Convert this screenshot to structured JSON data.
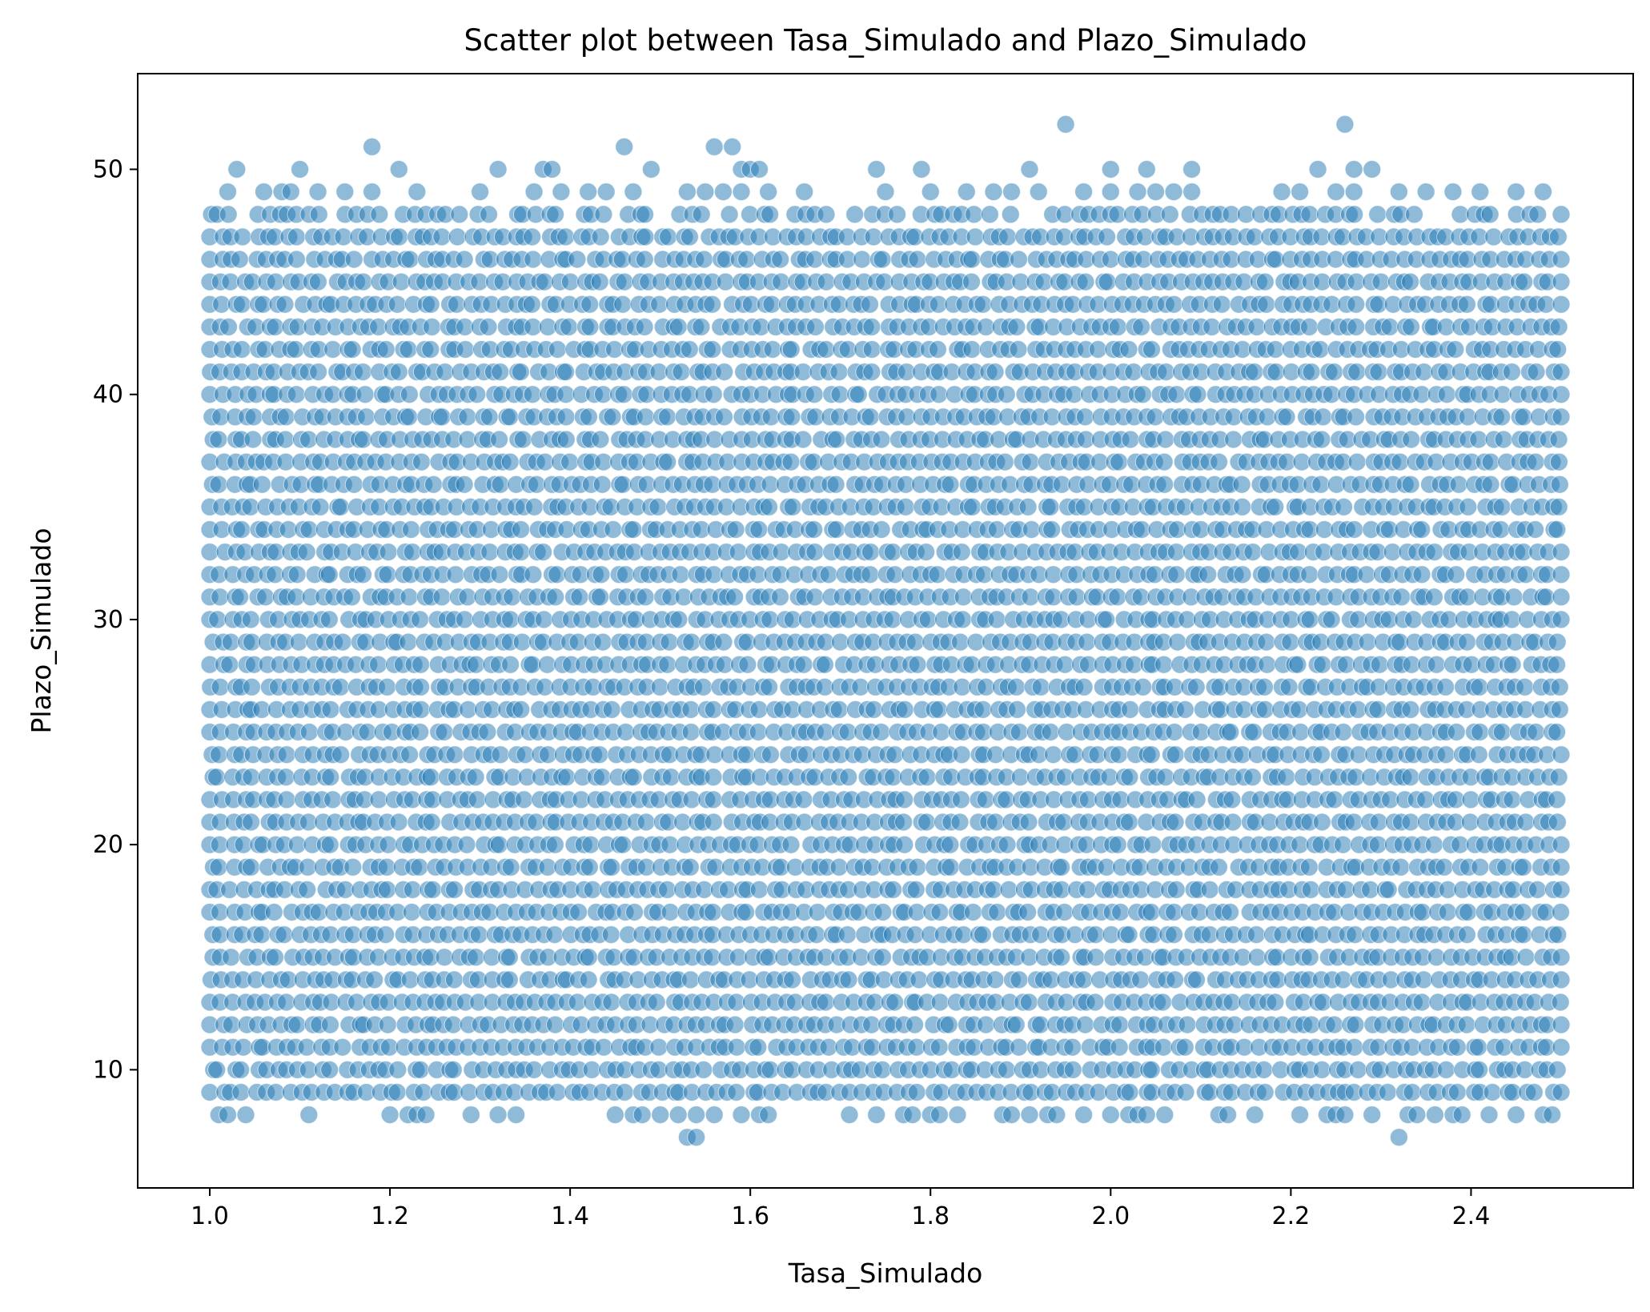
{
  "chart_data": {
    "type": "scatter",
    "title": "Scatter plot between Tasa_Simulado and Plazo_Simulado",
    "xlabel": "Tasa_Simulado",
    "ylabel": "Plazo_Simulado",
    "xlim": [
      0.92,
      2.58
    ],
    "ylim": [
      4.75,
      54.25
    ],
    "xticks": [
      "1.0",
      "1.2",
      "1.4",
      "1.6",
      "1.8",
      "2.0",
      "2.2",
      "2.4"
    ],
    "yticks": [
      "10",
      "20",
      "30",
      "40",
      "50"
    ],
    "grid": false,
    "legend": "none",
    "marker_color": "#1f77b4",
    "marker_alpha": 0.5,
    "dense_band": {
      "x_range": [
        1.0,
        2.5
      ],
      "y_range": [
        9,
        48
      ],
      "y_step": 1,
      "x_step": 0.0125
    },
    "series": [
      {
        "values": [
          [
            1.03,
            50
          ],
          [
            1.1,
            50
          ],
          [
            1.18,
            51
          ],
          [
            1.21,
            50
          ],
          [
            1.32,
            50
          ],
          [
            1.37,
            50
          ],
          [
            1.38,
            50
          ],
          [
            1.46,
            51
          ],
          [
            1.49,
            50
          ],
          [
            1.56,
            51
          ],
          [
            1.58,
            51
          ],
          [
            1.59,
            50
          ],
          [
            1.6,
            50
          ],
          [
            1.61,
            50
          ],
          [
            1.74,
            50
          ],
          [
            1.79,
            50
          ],
          [
            1.91,
            50
          ],
          [
            1.95,
            52
          ],
          [
            2.0,
            50
          ],
          [
            2.04,
            50
          ],
          [
            2.09,
            50
          ],
          [
            2.23,
            50
          ],
          [
            2.26,
            52
          ],
          [
            2.27,
            50
          ],
          [
            2.29,
            50
          ],
          [
            1.02,
            49
          ],
          [
            1.06,
            49
          ],
          [
            1.08,
            49
          ],
          [
            1.09,
            49
          ],
          [
            1.12,
            49
          ],
          [
            1.15,
            49
          ],
          [
            1.18,
            49
          ],
          [
            1.23,
            49
          ],
          [
            1.3,
            49
          ],
          [
            1.36,
            49
          ],
          [
            1.39,
            49
          ],
          [
            1.42,
            49
          ],
          [
            1.44,
            49
          ],
          [
            1.47,
            49
          ],
          [
            1.53,
            49
          ],
          [
            1.55,
            49
          ],
          [
            1.57,
            49
          ],
          [
            1.59,
            49
          ],
          [
            1.62,
            49
          ],
          [
            1.66,
            49
          ],
          [
            1.75,
            49
          ],
          [
            1.8,
            49
          ],
          [
            1.84,
            49
          ],
          [
            1.87,
            49
          ],
          [
            1.89,
            49
          ],
          [
            1.92,
            49
          ],
          [
            1.97,
            49
          ],
          [
            2.0,
            49
          ],
          [
            2.03,
            49
          ],
          [
            2.05,
            49
          ],
          [
            2.07,
            49
          ],
          [
            2.09,
            49
          ],
          [
            2.19,
            49
          ],
          [
            2.21,
            49
          ],
          [
            2.25,
            49
          ],
          [
            2.27,
            49
          ],
          [
            2.32,
            49
          ],
          [
            2.35,
            49
          ],
          [
            2.38,
            49
          ],
          [
            2.41,
            49
          ],
          [
            2.45,
            49
          ],
          [
            2.48,
            49
          ],
          [
            1.01,
            8
          ],
          [
            1.02,
            8
          ],
          [
            1.04,
            8
          ],
          [
            1.11,
            8
          ],
          [
            1.2,
            8
          ],
          [
            1.22,
            8
          ],
          [
            1.23,
            8
          ],
          [
            1.24,
            8
          ],
          [
            1.29,
            8
          ],
          [
            1.32,
            8
          ],
          [
            1.34,
            8
          ],
          [
            1.45,
            8
          ],
          [
            1.47,
            8
          ],
          [
            1.48,
            8
          ],
          [
            1.5,
            8
          ],
          [
            1.52,
            8
          ],
          [
            1.54,
            8
          ],
          [
            1.56,
            8
          ],
          [
            1.59,
            8
          ],
          [
            1.61,
            8
          ],
          [
            1.62,
            8
          ],
          [
            1.71,
            8
          ],
          [
            1.74,
            8
          ],
          [
            1.77,
            8
          ],
          [
            1.78,
            8
          ],
          [
            1.8,
            8
          ],
          [
            1.81,
            8
          ],
          [
            1.83,
            8
          ],
          [
            1.88,
            8
          ],
          [
            1.89,
            8
          ],
          [
            1.91,
            8
          ],
          [
            1.93,
            8
          ],
          [
            1.94,
            8
          ],
          [
            1.97,
            8
          ],
          [
            2.0,
            8
          ],
          [
            2.02,
            8
          ],
          [
            2.03,
            8
          ],
          [
            2.04,
            8
          ],
          [
            2.06,
            8
          ],
          [
            2.12,
            8
          ],
          [
            2.13,
            8
          ],
          [
            2.16,
            8
          ],
          [
            2.21,
            8
          ],
          [
            2.24,
            8
          ],
          [
            2.25,
            8
          ],
          [
            2.26,
            8
          ],
          [
            2.29,
            8
          ],
          [
            2.33,
            8
          ],
          [
            2.34,
            8
          ],
          [
            2.36,
            8
          ],
          [
            2.38,
            8
          ],
          [
            2.39,
            8
          ],
          [
            2.42,
            8
          ],
          [
            2.45,
            8
          ],
          [
            2.48,
            8
          ],
          [
            2.49,
            8
          ],
          [
            1.53,
            7
          ],
          [
            1.54,
            7
          ],
          [
            2.32,
            7
          ]
        ]
      }
    ]
  }
}
